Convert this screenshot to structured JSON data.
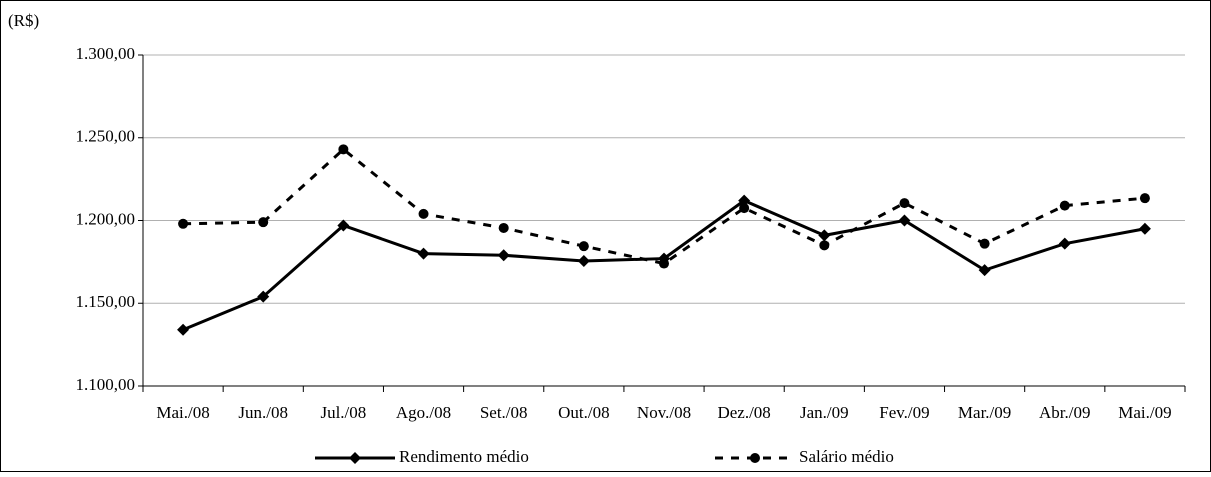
{
  "chart_data": {
    "type": "line",
    "y_unit_label": "(R$)",
    "categories": [
      "Mai./08",
      "Jun./08",
      "Jul./08",
      "Ago./08",
      "Set./08",
      "Out./08",
      "Nov./08",
      "Dez./08",
      "Jan./09",
      "Fev./09",
      "Mar./09",
      "Abr./09",
      "Mai./09"
    ],
    "series": [
      {
        "name": "Rendimento médio",
        "color": "#000000",
        "marker": "diamond",
        "dash": "solid",
        "values": [
          1134,
          1154,
          1197,
          1180,
          1179,
          1175.5,
          1177,
          1212,
          1191,
          1200,
          1170,
          1186,
          1195
        ]
      },
      {
        "name": "Salário médio",
        "color": "#000000",
        "marker": "circle",
        "dash": "dashed",
        "values": [
          1198,
          1199,
          1243,
          1204,
          1195.5,
          1184.5,
          1174,
          1207.5,
          1185,
          1210.5,
          1186,
          1209,
          1213.5
        ]
      }
    ],
    "ylim": [
      1100,
      1300
    ],
    "yticks": [
      {
        "value": 1100,
        "label": "1.100,00"
      },
      {
        "value": 1150,
        "label": "1.150,00"
      },
      {
        "value": 1200,
        "label": "1.200,00"
      },
      {
        "value": 1250,
        "label": "1.250,00"
      },
      {
        "value": 1300,
        "label": "1.300,00"
      }
    ],
    "grid": true,
    "legend": "bottom"
  }
}
